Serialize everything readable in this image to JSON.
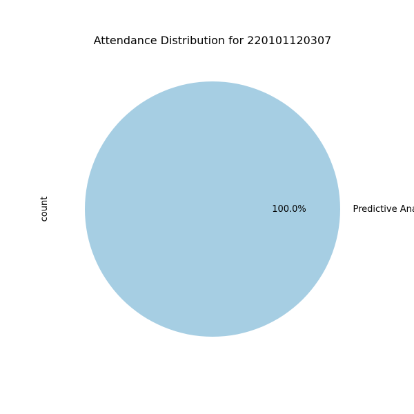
{
  "chart_data": {
    "type": "pie",
    "title": "Attendance Distribution for 220101120307",
    "ylabel": "count",
    "slices": [
      {
        "label": "Predictive Analysis",
        "value": 1,
        "percent_label": "100.0%",
        "color": "#a6cee3"
      }
    ],
    "legend": "none"
  }
}
